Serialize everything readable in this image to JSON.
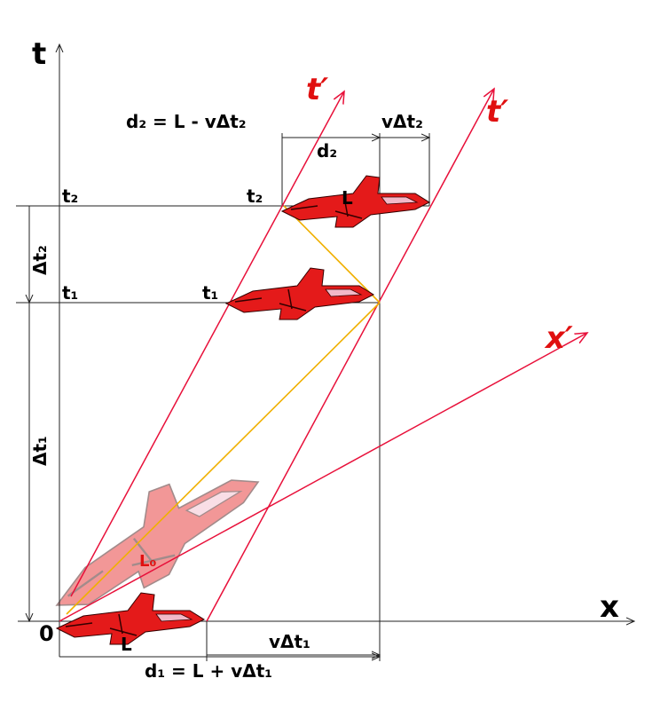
{
  "axes": {
    "t": "t",
    "x": "x",
    "t_prime_1": "t′",
    "t_prime_2": "t′",
    "x_prime": "x′",
    "origin": "0"
  },
  "top": {
    "formula": "d₂ = L - vΔt₂",
    "v_dt": "vΔt₂",
    "d": "d₂",
    "t_axis_label": "t₂",
    "plane_time": "t₂",
    "plane_length": "L",
    "dt": "Δt₂"
  },
  "middle": {
    "t_axis_label": "t₁",
    "plane_time": "t₁",
    "dt": "Δt₁"
  },
  "bottom": {
    "rest_length": "L₀",
    "plane_length": "L",
    "v_dt": "vΔt₁",
    "formula": "d₁ = L + vΔt₁"
  }
}
